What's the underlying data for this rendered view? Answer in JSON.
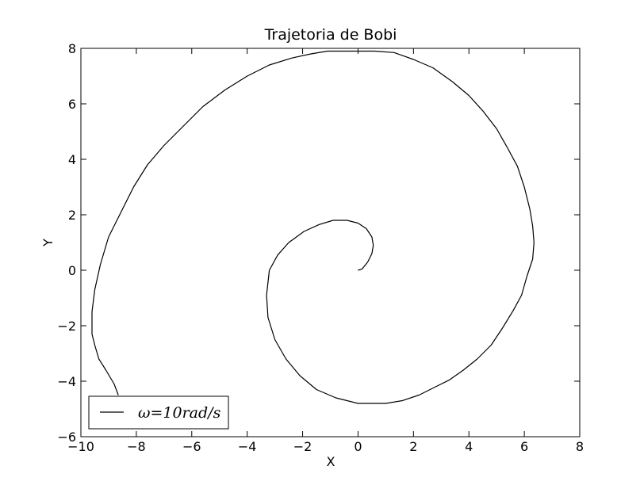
{
  "chart_data": {
    "type": "line",
    "title": "Trajetoria de Bobi",
    "xlabel": "X",
    "ylabel": "Y",
    "xlim": [
      -10,
      8
    ],
    "ylim": [
      -6,
      8
    ],
    "xticks": [
      -10,
      -8,
      -6,
      -4,
      -2,
      0,
      2,
      4,
      6,
      8
    ],
    "yticks": [
      -6,
      -4,
      -2,
      0,
      2,
      4,
      6,
      8
    ],
    "xtick_labels": [
      "−10",
      "−8",
      "−6",
      "−4",
      "−2",
      "0",
      "2",
      "4",
      "6",
      "8"
    ],
    "ytick_labels": [
      "−6",
      "−4",
      "−2",
      "0",
      "2",
      "4",
      "6",
      "8"
    ],
    "grid": false,
    "legend_position": "lower-left",
    "series": [
      {
        "name": "ω=10rad/s",
        "color": "#000000",
        "x": [
          0,
          0.15,
          0.35,
          0.5,
          0.55,
          0.5,
          0.3,
          0.0,
          -0.4,
          -0.9,
          -1.4,
          -1.95,
          -2.5,
          -2.9,
          -3.2,
          -3.3,
          -3.25,
          -3.0,
          -2.6,
          -2.1,
          -1.5,
          -0.8,
          0.0,
          0.6,
          1.0,
          1.6,
          2.2,
          2.8,
          3.3,
          3.8,
          4.3,
          4.8,
          5.2,
          5.6,
          5.9,
          6.1,
          6.3,
          6.35,
          6.3,
          6.2,
          6.0,
          5.75,
          5.4,
          5.0,
          4.5,
          4.0,
          3.4,
          2.7,
          2.0,
          1.3,
          0.6,
          0.0,
          -0.5,
          -1.1,
          -1.7,
          -2.4,
          -3.2,
          -4.0,
          -4.8,
          -5.6,
          -6.3,
          -7.0,
          -7.6,
          -8.1,
          -8.6,
          -9.0,
          -9.3,
          -9.5,
          -9.6,
          -9.6,
          -9.5,
          -9.35,
          -9.1,
          -8.8,
          -8.65
        ],
        "y": [
          0,
          0.05,
          0.3,
          0.6,
          0.9,
          1.2,
          1.5,
          1.7,
          1.8,
          1.8,
          1.65,
          1.4,
          1.0,
          0.55,
          0.0,
          -0.9,
          -1.7,
          -2.5,
          -3.2,
          -3.8,
          -4.3,
          -4.6,
          -4.8,
          -4.8,
          -4.8,
          -4.7,
          -4.5,
          -4.2,
          -3.95,
          -3.6,
          -3.2,
          -2.7,
          -2.1,
          -1.45,
          -0.9,
          -0.2,
          0.4,
          1.0,
          1.6,
          2.2,
          3.0,
          3.75,
          4.4,
          5.1,
          5.75,
          6.3,
          6.8,
          7.3,
          7.6,
          7.85,
          7.9,
          7.9,
          7.9,
          7.9,
          7.8,
          7.65,
          7.4,
          7.0,
          6.5,
          5.9,
          5.2,
          4.5,
          3.8,
          3.0,
          2.0,
          1.2,
          0.2,
          -0.7,
          -1.5,
          -2.3,
          -2.7,
          -3.2,
          -3.6,
          -4.1,
          -4.5
        ]
      }
    ]
  }
}
